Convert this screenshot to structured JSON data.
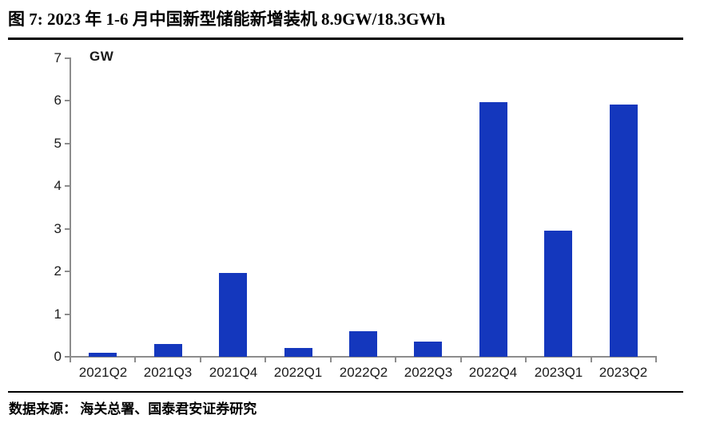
{
  "header": {
    "title": "图 7:  2023 年 1-6 月中国新型储能新增装机 8.9GW/18.3GWh"
  },
  "footer": {
    "source": "数据来源： 海关总署、国泰君安证券研究"
  },
  "chart_data": {
    "type": "bar",
    "title": "2023 年 1-6 月中国新型储能新增装机 8.9GW/18.3GWh",
    "unit_label": "GW",
    "categories": [
      "2021Q2",
      "2021Q3",
      "2021Q4",
      "2022Q1",
      "2022Q2",
      "2022Q3",
      "2022Q4",
      "2023Q1",
      "2023Q2"
    ],
    "values": [
      0.1,
      0.3,
      1.97,
      0.2,
      0.6,
      0.35,
      5.97,
      2.95,
      5.92
    ],
    "xlabel": "",
    "ylabel": "GW",
    "ylim": [
      0,
      7
    ],
    "yticks": [
      0,
      1,
      2,
      3,
      4,
      5,
      6,
      7
    ],
    "grid": false,
    "legend": "none",
    "bar_color": "#1437bd",
    "axis_color": "#8c8c8c"
  }
}
